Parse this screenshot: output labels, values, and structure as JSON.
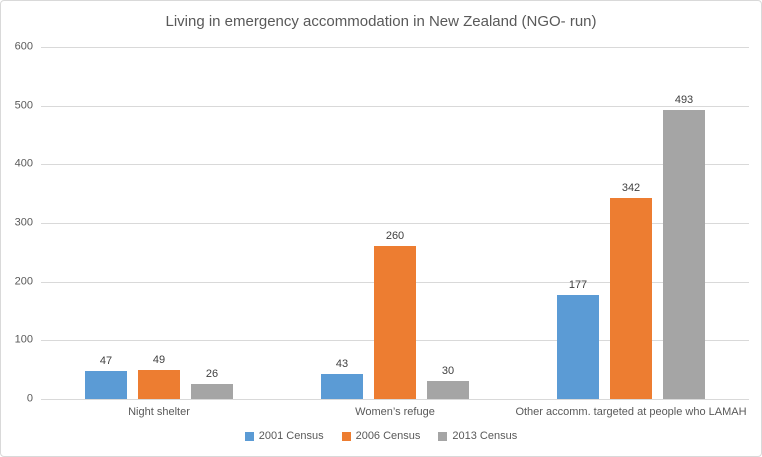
{
  "chart_data": {
    "type": "bar",
    "title": "Living in emergency accommodation in New Zealand (NGO- run)",
    "categories": [
      "Night shelter",
      "Women’s refuge",
      "Other accomm. targeted at people who LAMAH"
    ],
    "series": [
      {
        "name": "2001 Census",
        "color": "#5B9BD5",
        "values": [
          47,
          43,
          177
        ]
      },
      {
        "name": "2006 Census",
        "color": "#ED7D31",
        "values": [
          49,
          260,
          342
        ]
      },
      {
        "name": "2013 Census",
        "color": "#A5A5A5",
        "values": [
          26,
          30,
          493
        ]
      }
    ],
    "xlabel": "",
    "ylabel": "",
    "ylim": [
      0,
      600
    ],
    "ytick_step": 100,
    "grid": true,
    "data_labels": true,
    "legend_position": "bottom"
  },
  "colors": {
    "gridline": "#D9D9D9",
    "border": "#D9D9D9",
    "background": "#FFFFFF",
    "title_text": "#595959",
    "axis_text": "#595959",
    "data_label_text": "#404040"
  }
}
